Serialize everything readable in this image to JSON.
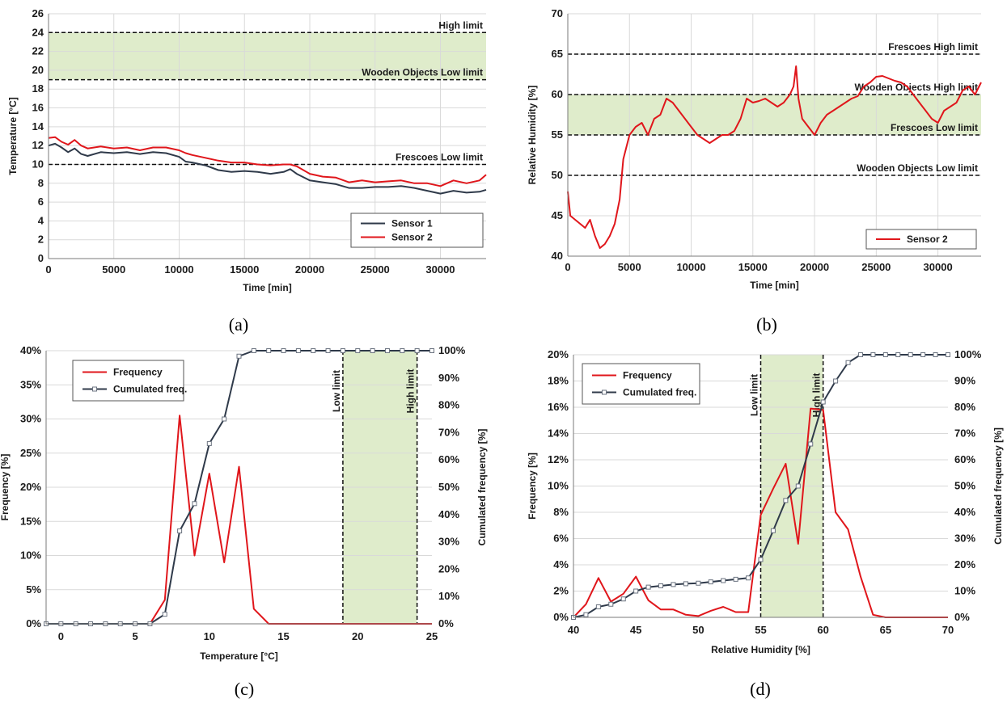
{
  "panels": [
    "(a)",
    "(b)",
    "(c)",
    "(d)"
  ],
  "colors": {
    "sensor1": "#2f3a4a",
    "sensor2": "#e0161b",
    "band": "#dfeccb",
    "grid": "#d9d9d9"
  },
  "chart_data": [
    {
      "type": "line",
      "xlabel": "Time [min]",
      "ylabel": "Temperature [°C]",
      "xlim": [
        0,
        33500
      ],
      "ylim": [
        0,
        26
      ],
      "xticks": [
        0,
        5000,
        10000,
        15000,
        20000,
        25000,
        30000
      ],
      "yticks": [
        0,
        2,
        4,
        6,
        8,
        10,
        12,
        14,
        16,
        18,
        20,
        22,
        24,
        26
      ],
      "band": [
        19,
        24
      ],
      "limits": [
        {
          "value": 24,
          "label": "High limit"
        },
        {
          "value": 19,
          "label": "Wooden Objects Low limit"
        },
        {
          "value": 10,
          "label": "Frescoes Low limit"
        }
      ],
      "series": [
        {
          "name": "Sensor 1",
          "color": "#2f3a4a",
          "x": [
            0,
            500,
            1000,
            1500,
            2000,
            2500,
            3000,
            4000,
            5000,
            6000,
            7000,
            8000,
            9000,
            10000,
            10500,
            11000,
            12000,
            13000,
            14000,
            15000,
            16000,
            17000,
            18000,
            18500,
            19000,
            20000,
            21000,
            22000,
            23000,
            24000,
            25000,
            26000,
            27000,
            28000,
            29000,
            30000,
            31000,
            32000,
            33000,
            33500
          ],
          "y": [
            12.0,
            12.2,
            11.8,
            11.3,
            11.7,
            11.1,
            10.9,
            11.3,
            11.2,
            11.3,
            11.1,
            11.3,
            11.2,
            10.8,
            10.3,
            10.2,
            9.9,
            9.4,
            9.2,
            9.3,
            9.2,
            9.0,
            9.2,
            9.5,
            9.0,
            8.3,
            8.1,
            7.9,
            7.5,
            7.5,
            7.6,
            7.6,
            7.7,
            7.5,
            7.2,
            6.9,
            7.2,
            7.0,
            7.1,
            7.3
          ]
        },
        {
          "name": "Sensor 2",
          "color": "#e0161b",
          "x": [
            0,
            500,
            1000,
            1500,
            2000,
            2500,
            3000,
            4000,
            5000,
            6000,
            7000,
            8000,
            9000,
            10000,
            10500,
            11000,
            12000,
            13000,
            14000,
            15000,
            16000,
            17000,
            18000,
            18500,
            19000,
            20000,
            21000,
            22000,
            23000,
            24000,
            25000,
            26000,
            27000,
            28000,
            29000,
            30000,
            31000,
            32000,
            33000,
            33500
          ],
          "y": [
            12.8,
            12.9,
            12.4,
            12.1,
            12.6,
            12.0,
            11.7,
            11.9,
            11.7,
            11.8,
            11.5,
            11.8,
            11.8,
            11.5,
            11.2,
            11.0,
            10.7,
            10.4,
            10.2,
            10.2,
            10.0,
            9.9,
            10.0,
            10.0,
            9.8,
            9.0,
            8.7,
            8.6,
            8.1,
            8.3,
            8.1,
            8.2,
            8.3,
            8.0,
            8.0,
            7.7,
            8.3,
            8.0,
            8.3,
            8.9
          ]
        }
      ],
      "legend": "bottom-right"
    },
    {
      "type": "line",
      "xlabel": "Time [min]",
      "ylabel": "Relative Humidity [%]",
      "xlim": [
        0,
        33500
      ],
      "ylim": [
        40,
        70
      ],
      "xticks": [
        0,
        5000,
        10000,
        15000,
        20000,
        25000,
        30000
      ],
      "yticks": [
        40,
        45,
        50,
        55,
        60,
        65,
        70
      ],
      "band": [
        55,
        60
      ],
      "limits": [
        {
          "value": 65,
          "label": "Frescoes High limit"
        },
        {
          "value": 60,
          "label": "Wooden Objects High limit"
        },
        {
          "value": 55,
          "label": "Frescoes Low limit"
        },
        {
          "value": 50,
          "label": "Wooden Objects Low limit"
        }
      ],
      "series": [
        {
          "name": "Sensor 2",
          "color": "#e0161b",
          "x": [
            0,
            200,
            600,
            1000,
            1400,
            1800,
            2200,
            2600,
            3000,
            3400,
            3800,
            4200,
            4500,
            5000,
            5500,
            6000,
            6500,
            7000,
            7500,
            8000,
            8500,
            9000,
            9500,
            10000,
            10500,
            11000,
            11500,
            12000,
            12500,
            13000,
            13500,
            14000,
            14500,
            15000,
            15500,
            16000,
            16500,
            17000,
            17500,
            18000,
            18300,
            18500,
            18700,
            19000,
            19500,
            20000,
            20500,
            21000,
            21500,
            22000,
            22500,
            23000,
            23500,
            24000,
            24500,
            25000,
            25500,
            26000,
            26500,
            27000,
            27500,
            28000,
            28500,
            29000,
            29500,
            30000,
            30500,
            31000,
            31500,
            32000,
            32500,
            33000,
            33500
          ],
          "y": [
            48,
            45,
            44.5,
            44,
            43.5,
            44.5,
            42.5,
            41,
            41.5,
            42.5,
            44,
            47,
            52,
            55,
            56,
            56.5,
            55,
            57,
            57.5,
            59.5,
            59,
            58,
            57,
            56,
            55,
            54.5,
            54,
            54.5,
            55,
            55,
            55.5,
            57,
            59.5,
            59,
            59.2,
            59.5,
            59,
            58.5,
            59,
            60,
            61,
            63.5,
            59.5,
            57,
            56,
            55,
            56.5,
            57.5,
            58,
            58.5,
            59,
            59.5,
            59.8,
            61,
            61.5,
            62.2,
            62.3,
            62,
            61.7,
            61.5,
            61,
            60,
            59,
            58,
            57,
            56.5,
            58,
            58.5,
            59,
            60.5,
            61,
            60,
            61.5
          ]
        }
      ],
      "legend": "bottom-right"
    },
    {
      "type": "line",
      "xlabel": "Temperature [°C]",
      "ylabel": "Frequency [%]",
      "y2label": "Cumulated frequency [%]",
      "xlim": [
        -1,
        25
      ],
      "ylim": [
        0,
        40
      ],
      "y2lim": [
        0,
        100
      ],
      "xticks": [
        0,
        5,
        10,
        15,
        20,
        25
      ],
      "yticks": [
        0,
        5,
        10,
        15,
        20,
        25,
        30,
        35,
        40
      ],
      "y2ticks": [
        0,
        10,
        20,
        30,
        40,
        50,
        60,
        70,
        80,
        90,
        100
      ],
      "band": [
        19,
        24
      ],
      "vlimits": [
        {
          "value": 19,
          "label": "Low limit"
        },
        {
          "value": 24,
          "label": "High limit"
        }
      ],
      "series": [
        {
          "name": "Frequency",
          "color": "#e0161b",
          "axis": "left",
          "x": [
            -1,
            0,
            1,
            2,
            3,
            4,
            5,
            6,
            7,
            8,
            9,
            10,
            11,
            12,
            13,
            14,
            15,
            16,
            17,
            18,
            19,
            20,
            21,
            22,
            23,
            24,
            25
          ],
          "y": [
            0,
            0,
            0,
            0,
            0,
            0,
            0,
            0,
            3.5,
            30.5,
            10,
            22,
            9,
            23,
            2.2,
            0,
            0,
            0,
            0,
            0,
            0,
            0,
            0,
            0,
            0,
            0,
            0
          ]
        },
        {
          "name": "Cumulated freq.",
          "color": "#2f3a4a",
          "axis": "right",
          "markers": true,
          "x": [
            -1,
            0,
            1,
            2,
            3,
            4,
            5,
            6,
            7,
            8,
            9,
            10,
            11,
            12,
            13,
            14,
            15,
            16,
            17,
            18,
            19,
            20,
            21,
            22,
            23,
            24,
            25
          ],
          "y": [
            0,
            0,
            0,
            0,
            0,
            0,
            0,
            0,
            3.5,
            34,
            44,
            66,
            75,
            98,
            100,
            100,
            100,
            100,
            100,
            100,
            100,
            100,
            100,
            100,
            100,
            100,
            100
          ]
        }
      ],
      "legend": "top-left"
    },
    {
      "type": "line",
      "xlabel": "Relative Humidity [%]",
      "ylabel": "Frequency [%]",
      "y2label": "Cumulated frequency [%]",
      "xlim": [
        40,
        70
      ],
      "ylim": [
        0,
        20
      ],
      "y2lim": [
        0,
        100
      ],
      "xticks": [
        40,
        45,
        50,
        55,
        60,
        65,
        70
      ],
      "yticks": [
        0,
        2,
        4,
        6,
        8,
        10,
        12,
        14,
        16,
        18,
        20
      ],
      "y2ticks": [
        0,
        10,
        20,
        30,
        40,
        50,
        60,
        70,
        80,
        90,
        100
      ],
      "band": [
        55,
        60
      ],
      "vlimits": [
        {
          "value": 55,
          "label": "Low limit"
        },
        {
          "value": 60,
          "label": "High limit"
        }
      ],
      "series": [
        {
          "name": "Frequency",
          "color": "#e0161b",
          "axis": "left",
          "x": [
            40,
            41,
            42,
            43,
            44,
            45,
            46,
            47,
            48,
            49,
            50,
            51,
            52,
            53,
            54,
            55,
            56,
            57,
            58,
            59,
            60,
            61,
            62,
            63,
            64,
            65,
            66,
            67,
            68,
            69,
            70
          ],
          "y": [
            0,
            1,
            3,
            1.2,
            1.8,
            3.1,
            1.3,
            0.6,
            0.6,
            0.2,
            0.1,
            0.5,
            0.8,
            0.4,
            0.4,
            7.8,
            9.8,
            11.7,
            5.6,
            15.9,
            15.8,
            8,
            6.7,
            3.1,
            0.2,
            0,
            0,
            0,
            0,
            0,
            0
          ]
        },
        {
          "name": "Cumulated freq.",
          "color": "#2f3a4a",
          "axis": "right",
          "markers": true,
          "x": [
            40,
            41,
            42,
            43,
            44,
            45,
            46,
            47,
            48,
            49,
            50,
            51,
            52,
            53,
            54,
            55,
            56,
            57,
            58,
            59,
            60,
            61,
            62,
            63,
            64,
            65,
            66,
            67,
            68,
            69,
            70
          ],
          "y": [
            0,
            1,
            4,
            5,
            7,
            10,
            11.5,
            12,
            12.5,
            12.8,
            13,
            13.5,
            14,
            14.5,
            15,
            22,
            33,
            44.5,
            50,
            66,
            82,
            90,
            97,
            100,
            100,
            100,
            100,
            100,
            100,
            100,
            100
          ]
        }
      ],
      "legend": "top-left"
    }
  ]
}
